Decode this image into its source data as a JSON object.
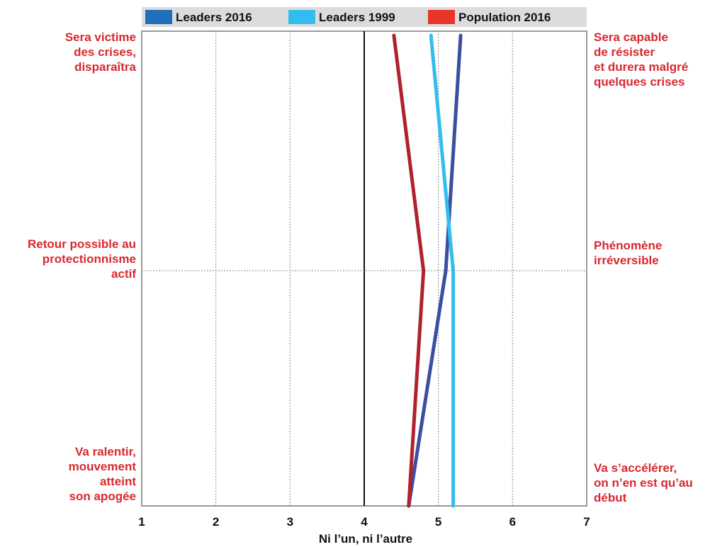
{
  "colors": {
    "accent_red": "#d8282f",
    "leaders_2016": "#3b4fa0",
    "leaders_1999": "#33bdee",
    "population_2016": "#b0222c",
    "legend_leaders_2016": "#1f6fba",
    "legend_population_2016": "#e8352a",
    "legend_bg": "#dcdcdc"
  },
  "chart_data": {
    "type": "line",
    "orientation": "horizontal-profile",
    "xlim": [
      1,
      7
    ],
    "xticks": [
      "1",
      "2",
      "3",
      "4",
      "5",
      "6",
      "7"
    ],
    "xlabel": "Ni l’un, ni l’autre",
    "reference_line": 4,
    "legend_position": "top",
    "grid": true,
    "rows": [
      {
        "left": [
          "Sera victime",
          "des crises,",
          "disparaîtra"
        ],
        "right": [
          "Sera capable",
          "de résister",
          "et durera malgré",
          "quelques crises"
        ]
      },
      {
        "left": [
          "Retour possible au",
          "protectionnisme",
          "actif"
        ],
        "right": [
          "Phénomène",
          "irréversible"
        ]
      },
      {
        "left": [
          "Va ralentir,",
          "mouvement",
          "atteint",
          "son apogée"
        ],
        "right": [
          "Va s’accélérer,",
          "on n’en est qu’au",
          "début"
        ]
      }
    ],
    "series": [
      {
        "name": "Leaders 2016",
        "values": [
          5.3,
          5.1,
          4.6
        ]
      },
      {
        "name": "Leaders 1999",
        "values": [
          4.9,
          5.2,
          5.2
        ]
      },
      {
        "name": "Population 2016",
        "values": [
          4.4,
          4.8,
          4.6
        ]
      }
    ]
  }
}
